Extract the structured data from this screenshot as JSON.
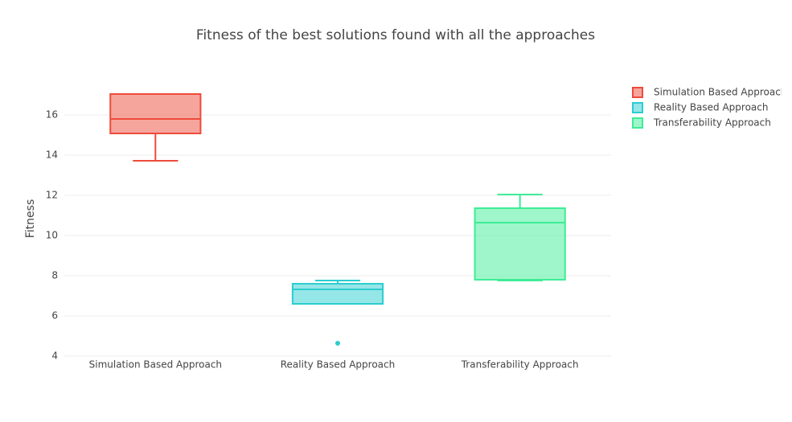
{
  "chart_data": {
    "type": "box",
    "title": "Fitness of the best solutions found with all the approaches",
    "y_label": "Fitness",
    "ylim": [
      4,
      18
    ],
    "yticks": [
      4,
      6,
      8,
      10,
      12,
      14,
      16
    ],
    "grid": true,
    "legend_position": "right",
    "series": [
      {
        "name": "Simulation Based Approach",
        "color": "#ee4b3b",
        "min": 13.72,
        "q1": 15.08,
        "median": 15.8,
        "q3": 17.04,
        "max": 17.04,
        "outliers": []
      },
      {
        "name": "Reality Based Approach",
        "color": "#2ccdd0",
        "min": 6.6,
        "q1": 6.6,
        "median": 7.32,
        "q3": 7.6,
        "max": 7.76,
        "outliers": [
          4.64
        ]
      },
      {
        "name": "Transferability Approach",
        "color": "#3ded96",
        "min": 7.76,
        "q1": 7.8,
        "median": 10.64,
        "q3": 11.36,
        "max": 12.04,
        "outliers": []
      }
    ]
  }
}
